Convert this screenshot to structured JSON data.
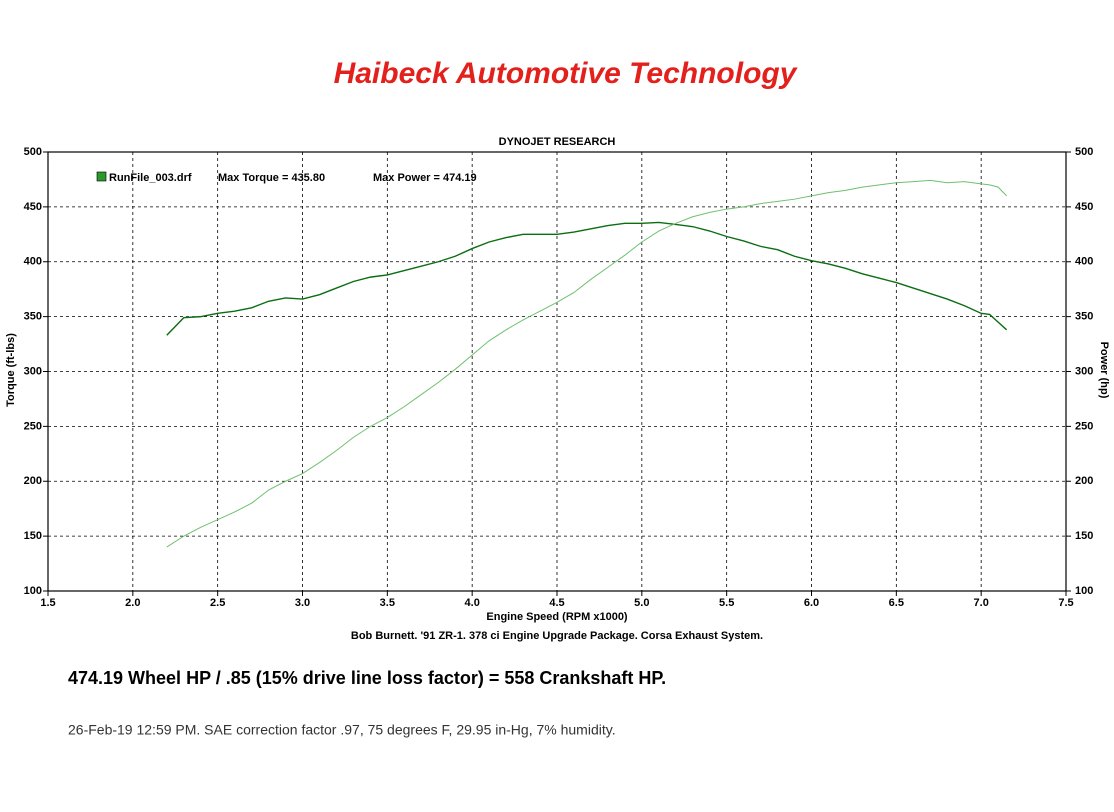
{
  "header": {
    "title": "Haibeck Automotive Technology"
  },
  "chart_data": {
    "type": "line",
    "title": "DYNOJET RESEARCH",
    "caption": "Bob Burnett. '91 ZR-1. 378 ci Engine Upgrade Package. Corsa Exhaust System.",
    "xlabel": "Engine Speed (RPM x1000)",
    "ylabel": "Torque (ft-lbs)",
    "y2label": "Power (hp)",
    "xlim": [
      1.5,
      7.5
    ],
    "xticks": [
      1.5,
      {
        "value": 2,
        "label": "2.0"
      },
      2.5,
      {
        "value": 3,
        "label": "3.0"
      },
      3.5,
      {
        "value": 4,
        "label": "4.0"
      },
      4.5,
      {
        "value": 5,
        "label": "5.0"
      },
      5.5,
      {
        "value": 6,
        "label": "6.0"
      },
      6.5,
      {
        "value": 7,
        "label": "7.0"
      },
      7.5
    ],
    "ylim": [
      100,
      500
    ],
    "yticks": [
      100,
      150,
      200,
      250,
      300,
      350,
      400,
      450,
      500
    ],
    "y2lim": [
      100,
      500
    ],
    "y2ticks": [
      100,
      150,
      200,
      250,
      300,
      350,
      400,
      450,
      500
    ],
    "grid": true,
    "annotations": [
      "Max Torque = 435.80",
      "Max Power = 474.19"
    ],
    "x": [
      2.2,
      2.3,
      2.4,
      2.5,
      2.6,
      2.7,
      2.8,
      2.9,
      3.0,
      3.1,
      3.2,
      3.3,
      3.4,
      3.5,
      3.6,
      3.7,
      3.8,
      3.9,
      4.0,
      4.1,
      4.2,
      4.3,
      4.4,
      4.5,
      4.6,
      4.7,
      4.8,
      4.9,
      5.0,
      5.1,
      5.2,
      5.3,
      5.4,
      5.5,
      5.6,
      5.7,
      5.8,
      5.9,
      6.0,
      6.1,
      6.2,
      6.3,
      6.4,
      6.5,
      6.6,
      6.7,
      6.8,
      6.9,
      7.0,
      7.05,
      7.1,
      7.15
    ],
    "series": [
      {
        "name": "RunFile_003.drf",
        "color": "#0a6e12",
        "values": [
          333,
          349,
          350,
          353,
          355,
          358,
          364,
          367,
          366,
          370,
          376,
          382,
          386,
          388,
          392,
          396,
          400,
          405,
          412,
          418,
          422,
          425,
          425,
          425,
          427,
          430,
          433,
          435,
          435,
          435.8,
          434,
          432,
          428,
          423,
          419,
          414,
          411,
          405,
          401,
          398,
          394,
          389,
          385,
          381,
          376,
          371,
          366,
          360,
          353,
          352,
          345,
          338
        ]
      },
      {
        "color": "#6fc06f",
        "axis": "y2",
        "values": [
          140,
          150,
          158,
          165,
          172,
          180,
          192,
          200,
          207,
          217,
          228,
          240,
          250,
          258,
          268,
          279,
          290,
          302,
          315,
          328,
          338,
          347,
          355,
          363,
          372,
          384,
          395,
          406,
          418,
          428,
          435,
          441,
          445,
          448,
          450,
          453,
          455,
          457,
          460,
          463,
          465,
          468,
          470,
          472,
          473,
          474.19,
          472,
          473,
          471,
          470,
          468,
          460
        ]
      }
    ]
  },
  "notes": [
    "474.19 Wheel HP / .85 (15% drive line loss factor) = 558 Crankshaft HP.",
    "26-Feb-19 12:59 PM. SAE correction factor .97, 75 degrees F, 29.95 in-Hg, 7% humidity."
  ]
}
